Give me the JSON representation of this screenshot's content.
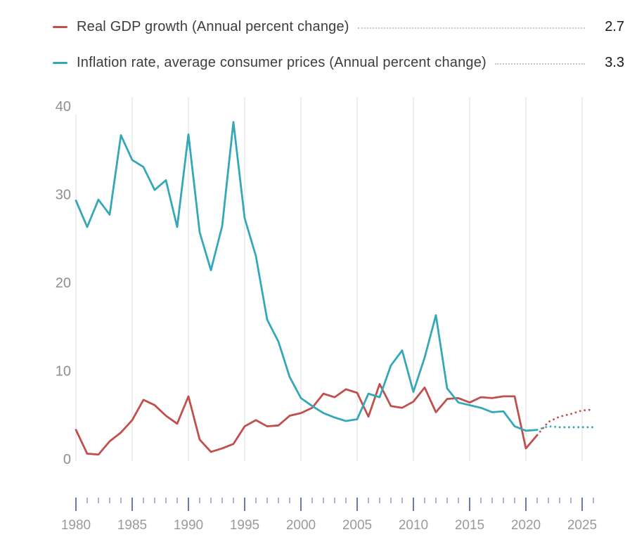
{
  "legend": {
    "items": [
      {
        "label": "Real GDP growth (Annual percent change)",
        "value": "2.7",
        "color": "#c0504d"
      },
      {
        "label": "Inflation rate, average consumer prices (Annual percent change)",
        "value": "3.3",
        "color": "#35a8b8"
      }
    ]
  },
  "axis": {
    "grid_color": "#dcdcdc",
    "y_label_color": "#8f8f8f",
    "x_label_color": "#9a9a9a",
    "major_tick_color": "#6b76b4",
    "minor_tick_color": "#8d96c8"
  },
  "chart_data": {
    "type": "line",
    "title": "",
    "xlabel": "",
    "ylabel": "",
    "ylim": [
      0,
      40
    ],
    "yticks": [
      0,
      10,
      20,
      30,
      40
    ],
    "xticks_major": [
      1980,
      1985,
      1990,
      1995,
      2000,
      2005,
      2010,
      2015,
      2020,
      2025
    ],
    "x_range": [
      1980,
      2026
    ],
    "grid": "vertical-only",
    "legend_position": "top",
    "years": [
      1980,
      1981,
      1982,
      1983,
      1984,
      1985,
      1986,
      1987,
      1988,
      1989,
      1990,
      1991,
      1992,
      1993,
      1994,
      1995,
      1996,
      1997,
      1998,
      1999,
      2000,
      2001,
      2002,
      2003,
      2004,
      2005,
      2006,
      2007,
      2008,
      2009,
      2010,
      2011,
      2012,
      2013,
      2014,
      2015,
      2016,
      2017,
      2018,
      2019,
      2020,
      2021
    ],
    "projection_years": [
      2021,
      2022,
      2023,
      2024,
      2025,
      2026
    ],
    "series": [
      {
        "name": "Real GDP growth (Annual percent change)",
        "color": "#c0504d",
        "current_value": 2.7,
        "values": [
          3.3,
          0.6,
          0.5,
          2.0,
          3.0,
          4.4,
          6.7,
          6.1,
          4.9,
          4.0,
          7.1,
          2.2,
          0.8,
          1.2,
          1.7,
          3.7,
          4.4,
          3.7,
          3.8,
          4.9,
          5.2,
          5.8,
          7.4,
          7.0,
          7.9,
          7.5,
          4.8,
          8.5,
          6.0,
          5.8,
          6.5,
          8.1,
          5.3,
          6.8,
          6.9,
          6.4,
          7.0,
          6.9,
          7.1,
          7.1,
          1.2,
          2.7
        ],
        "projection_values": [
          2.7,
          4.2,
          4.8,
          5.1,
          5.5,
          5.6
        ]
      },
      {
        "name": "Inflation rate, average consumer prices (Annual percent change)",
        "color": "#35a8b8",
        "current_value": 3.3,
        "values": [
          29.3,
          26.3,
          29.4,
          27.7,
          36.7,
          33.9,
          33.1,
          30.5,
          31.6,
          26.3,
          36.8,
          25.7,
          21.4,
          26.4,
          38.2,
          27.3,
          23.0,
          15.8,
          13.3,
          9.3,
          6.9,
          6.0,
          5.2,
          4.7,
          4.3,
          4.5,
          7.4,
          7.0,
          10.6,
          12.3,
          7.6,
          11.5,
          16.3,
          8.0,
          6.4,
          6.1,
          5.8,
          5.3,
          5.4,
          3.7,
          3.2,
          3.3
        ],
        "projection_values": [
          3.3,
          3.7,
          3.6,
          3.6,
          3.6,
          3.6
        ]
      }
    ]
  }
}
